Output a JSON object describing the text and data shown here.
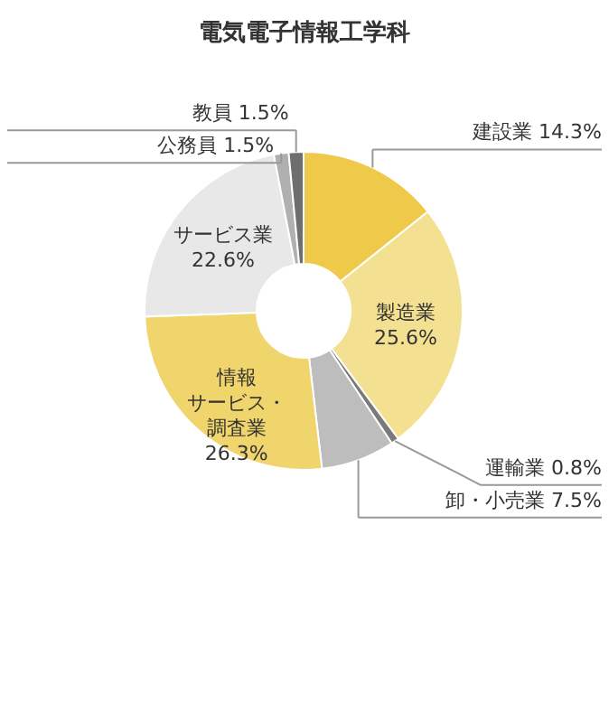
{
  "chart_data": {
    "type": "donut",
    "title": "電気電子情報工学科",
    "categories": [
      "建設業",
      "製造業",
      "運輸業",
      "卸・小売業",
      "情報サービス・調査業",
      "サービス業",
      "公務員",
      "教員"
    ],
    "values": [
      14.3,
      25.6,
      0.8,
      7.5,
      26.3,
      22.6,
      1.5,
      1.5
    ],
    "value_labels": [
      "14.3%",
      "25.6%",
      "0.8%",
      "7.5%",
      "26.3%",
      "22.6%",
      "1.5%",
      "1.5%"
    ],
    "colors": [
      "#eec94a",
      "#f4e091",
      "#7a7a7a",
      "#bdbdbd",
      "#f0d46c",
      "#e8e8e8",
      "#b0b0b0",
      "#6e6e6e"
    ]
  }
}
